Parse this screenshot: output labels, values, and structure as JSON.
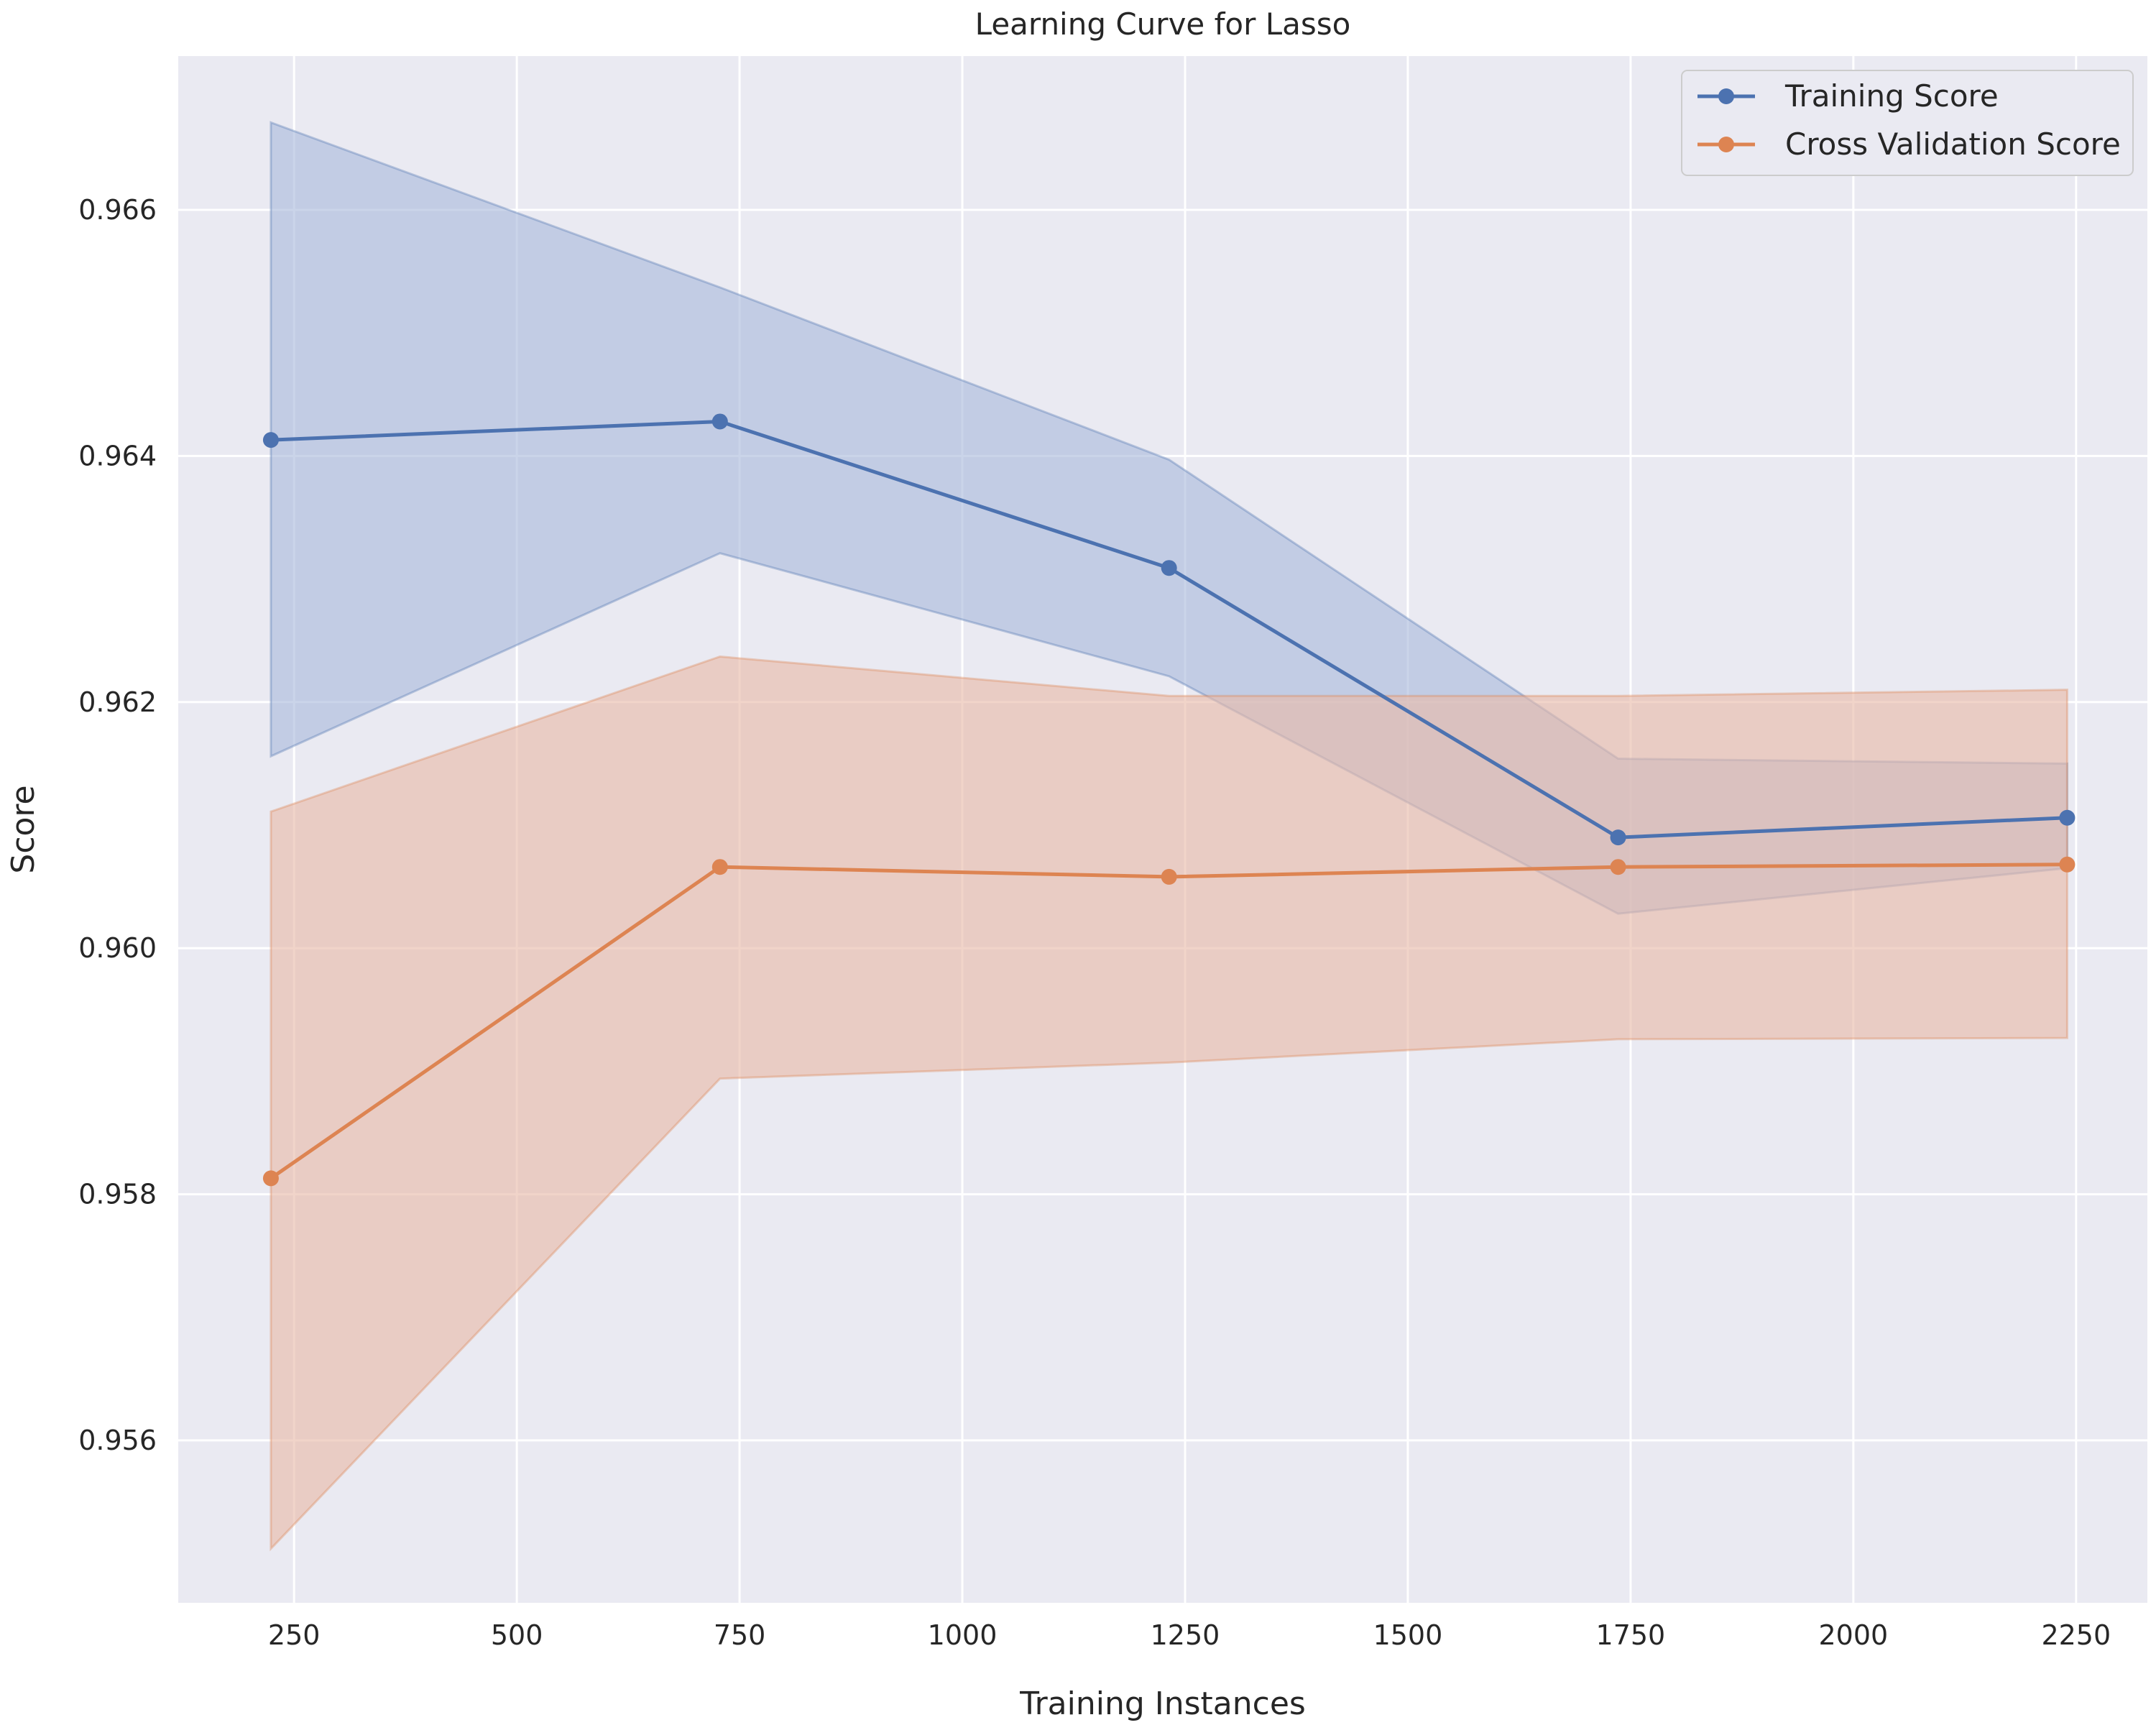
{
  "chart_data": {
    "type": "line",
    "title": "Learning Curve for Lasso",
    "xlabel": "Training Instances",
    "ylabel": "Score",
    "xlim": [
      120,
      2330
    ],
    "ylim": [
      0.95468,
      0.96725
    ],
    "xticks": [
      250,
      500,
      750,
      1000,
      1250,
      1500,
      1750,
      2000,
      2250
    ],
    "xtick_labels": [
      "250",
      "500",
      "750",
      "1000",
      "1250",
      "1500",
      "1750",
      "2000",
      "2250"
    ],
    "yticks": [
      0.956,
      0.958,
      0.96,
      0.962,
      0.964,
      0.966
    ],
    "ytick_labels": [
      "0.956",
      "0.958",
      "0.960",
      "0.962",
      "0.964",
      "0.966"
    ],
    "grid": true,
    "legend_position": "top-right",
    "x": [
      224,
      728,
      1232,
      1736,
      2240
    ],
    "series": [
      {
        "name": "Training Score",
        "color": "#4c72b0",
        "fill": "#aab9db",
        "values": [
          0.96413,
          0.96428,
          0.96309,
          0.9609,
          0.96106
        ],
        "upper": [
          0.96671,
          0.96537,
          0.96397,
          0.96154,
          0.9615
        ],
        "lower": [
          0.96156,
          0.96321,
          0.96221,
          0.96028,
          0.96065
        ]
      },
      {
        "name": "Cross Validation Score",
        "color": "#dd8452",
        "fill": "#e9b9a8",
        "values": [
          0.95813,
          0.96066,
          0.96058,
          0.96066,
          0.96068
        ],
        "upper": [
          0.96111,
          0.96237,
          0.96205,
          0.96205,
          0.9621
        ],
        "lower": [
          0.95512,
          0.95894,
          0.95907,
          0.95926,
          0.95927
        ]
      }
    ]
  }
}
